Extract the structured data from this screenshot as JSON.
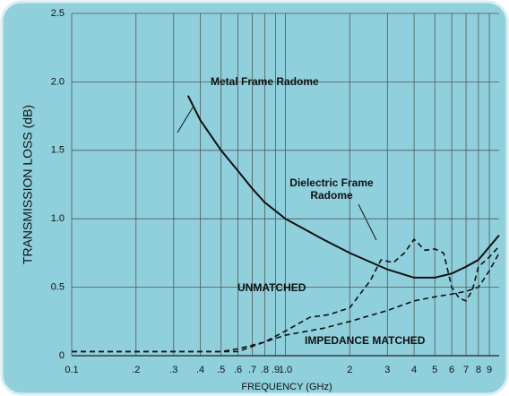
{
  "chart_data": {
    "type": "line",
    "xlabel": "FREQUENCY (GHz)",
    "ylabel": "TRANSMISSION LOSS (dB)",
    "xscale": "log",
    "grid": true,
    "xlim": [
      0.1,
      10
    ],
    "ylim": [
      0,
      2.5
    ],
    "xticks": [
      {
        "value": 0.1,
        "label": "0.1"
      },
      {
        "value": 0.2,
        "label": ".2"
      },
      {
        "value": 0.3,
        "label": ".3"
      },
      {
        "value": 0.4,
        "label": ".4"
      },
      {
        "value": 0.5,
        "label": ".5"
      },
      {
        "value": 0.6,
        "label": ".6"
      },
      {
        "value": 0.7,
        "label": ".7"
      },
      {
        "value": 0.8,
        "label": ".8"
      },
      {
        "value": 0.9,
        "label": ".9"
      },
      {
        "value": 1,
        "label": "1.0"
      },
      2,
      3,
      4,
      5,
      6,
      7,
      8,
      9
    ],
    "yticks": [
      0,
      0.5,
      {
        "value": 1,
        "label": "1.0"
      },
      1.5,
      {
        "value": 2,
        "label": "2.0"
      },
      2.5
    ],
    "series": [
      {
        "color": "#111111",
        "style": "solid",
        "x": [
          0.35,
          0.4,
          0.5,
          0.6,
          0.7,
          0.8,
          1,
          1.5,
          2,
          3,
          4,
          5,
          6,
          7,
          8,
          10
        ],
        "values": [
          1.9,
          1.72,
          1.5,
          1.35,
          1.22,
          1.12,
          1.0,
          0.85,
          0.75,
          0.63,
          0.57,
          0.57,
          0.6,
          0.65,
          0.7,
          0.88
        ]
      },
      {
        "color": "#111111",
        "style": "dashed",
        "x": [
          0.1,
          0.6,
          0.8,
          1,
          1.3,
          1.6,
          2,
          2.5,
          2.8,
          3.2,
          3.6,
          4,
          4.5,
          5,
          5.5,
          6,
          6.5,
          7,
          7.5,
          8,
          9,
          10
        ],
        "values": [
          0.03,
          0.03,
          0.1,
          0.18,
          0.28,
          0.3,
          0.35,
          0.55,
          0.7,
          0.68,
          0.75,
          0.85,
          0.77,
          0.78,
          0.75,
          0.5,
          0.42,
          0.4,
          0.48,
          0.65,
          0.72,
          0.8
        ]
      },
      {
        "color": "#111111",
        "style": "dashed",
        "x": [
          0.1,
          0.5,
          0.6,
          0.8,
          1,
          1.5,
          2,
          3,
          4,
          5,
          6,
          7,
          8,
          9,
          10
        ],
        "values": [
          0.03,
          0.03,
          0.05,
          0.1,
          0.15,
          0.2,
          0.25,
          0.33,
          0.4,
          0.43,
          0.45,
          0.47,
          0.5,
          0.62,
          0.75
        ]
      }
    ],
    "annotations": [
      "Metal Frame Radome",
      "Dielectric Frame",
      "Radome",
      "UNMATCHED",
      "IMPEDANCE MATCHED"
    ]
  }
}
